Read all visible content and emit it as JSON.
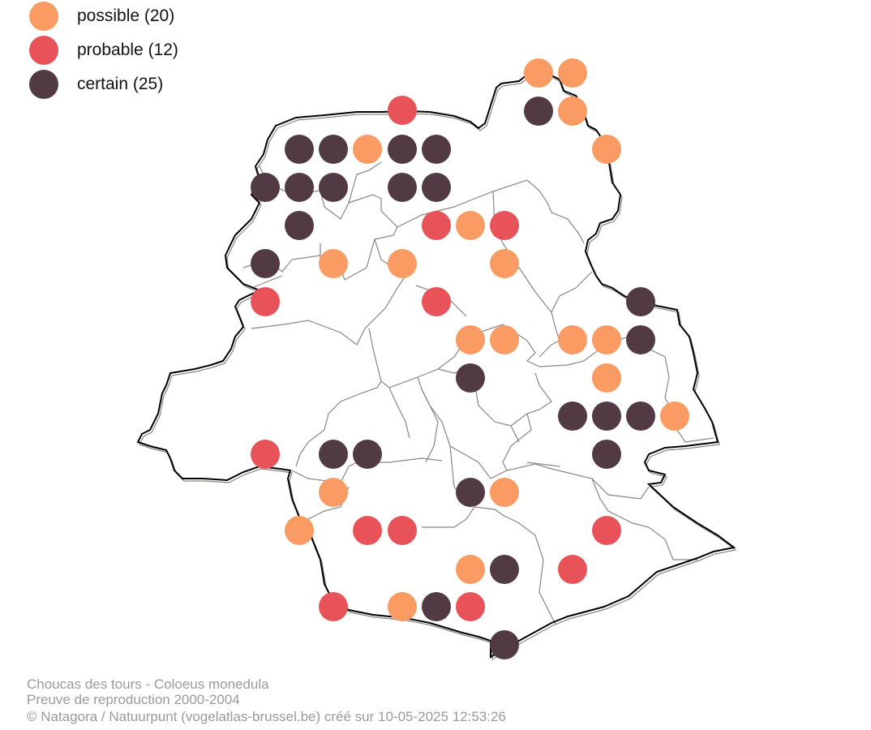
{
  "colors": {
    "possible": "#f99b62",
    "probable": "#e8535a",
    "certain": "#523a45",
    "boundary": "#000000",
    "municipality": "#8a8580"
  },
  "legend": [
    {
      "key": "possible",
      "label": "possible (20)"
    },
    {
      "key": "probable",
      "label": "probable (12)"
    },
    {
      "key": "certain",
      "label": "certain (25)"
    }
  ],
  "caption": {
    "species": "Choucas des tours - Coloeus monedula",
    "subtitle": "Preuve de reproduction 2000-2004",
    "credit": "© Natagora / Natuurpunt (vogelatlas-brussel.be) créé sur 10-05-2025 12:53:26"
  }
}
